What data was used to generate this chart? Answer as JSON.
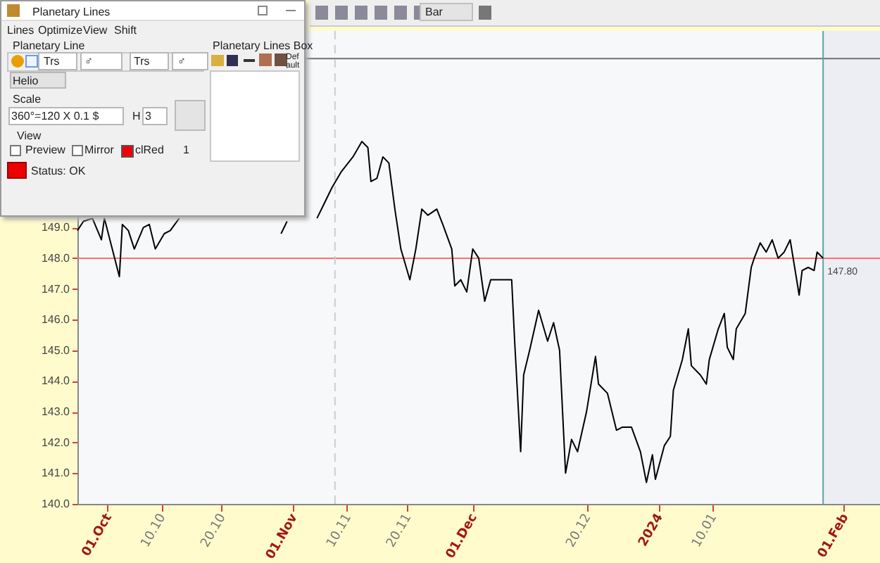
{
  "chart_data": {
    "type": "line",
    "xlim": [
      "2023-09-26",
      "2024-02-07"
    ],
    "ylim": [
      140,
      155.4
    ],
    "xticks": [
      {
        "value": "2023-10-01",
        "label": "01.Oct"
      },
      {
        "value": "2023-10-10",
        "label": "10.10"
      },
      {
        "value": "2023-10-20",
        "label": "20.10"
      },
      {
        "value": "2023-11-01",
        "label": "01.Nov"
      },
      {
        "value": "2023-11-10",
        "label": "10.11"
      },
      {
        "value": "2023-11-20",
        "label": "20.11"
      },
      {
        "value": "2023-12-01",
        "label": "01.Dec"
      },
      {
        "value": "2023-12-20",
        "label": "20.12"
      },
      {
        "value": "2024-01-01",
        "label": "2024"
      },
      {
        "value": "2024-01-10",
        "label": "10.01"
      },
      {
        "value": "2024-02-01",
        "label": "01.Feb"
      }
    ],
    "yticks": [
      {
        "value": 140,
        "label": "140.0"
      },
      {
        "value": 141,
        "label": "141.0"
      },
      {
        "value": 142,
        "label": "142.0"
      },
      {
        "value": 143,
        "label": "143.0"
      },
      {
        "value": 144,
        "label": "144.0"
      },
      {
        "value": 145,
        "label": "145.0"
      },
      {
        "value": 146,
        "label": "146.0"
      },
      {
        "value": 147,
        "label": "147.0"
      },
      {
        "value": 148,
        "label": "148.0"
      },
      {
        "value": 149,
        "label": "149.0"
      }
    ],
    "grid": false,
    "marker": "none",
    "line_style": "solid",
    "x": [
      "2023-09-26",
      "2023-09-27",
      "2023-09-28T12:00",
      "2023-09-30",
      "2023-09-30T12:00",
      "2023-10-03",
      "2023-10-03T12:00",
      "2023-10-04T12:00",
      "2023-10-05T12:00",
      "2023-10-07",
      "2023-10-08",
      "2023-10-09",
      "2023-10-10T12:00",
      "2023-10-11T12:00",
      "2023-10-13",
      "2023-10-14",
      "2023-10-30",
      "2023-10-31",
      "2023-11-03T12:00",
      "2023-11-05",
      "2023-11-06",
      "2023-11-07T12:00",
      "2023-11-09",
      "2023-11-11",
      "2023-11-12T12:00",
      "2023-11-13T12:00",
      "2023-11-14",
      "2023-11-15",
      "2023-11-16",
      "2023-11-17",
      "2023-11-18",
      "2023-11-19",
      "2023-11-20T12:00",
      "2023-11-21T12:00",
      "2023-11-22T12:00",
      "2023-11-23T12:00",
      "2023-11-25",
      "2023-11-26",
      "2023-11-27T12:00",
      "2023-11-28",
      "2023-11-29",
      "2023-11-30",
      "2023-12-01",
      "2023-12-02",
      "2023-12-03",
      "2023-12-04",
      "2023-12-06",
      "2023-12-07T12:00",
      "2023-12-08",
      "2023-12-09",
      "2023-12-09T12:00",
      "2023-12-10T12:00",
      "2023-12-12",
      "2023-12-13T12:00",
      "2023-12-14T12:00",
      "2023-12-15T12:00",
      "2023-12-16",
      "2023-12-16T12:00",
      "2023-12-17T12:00",
      "2023-12-18T12:00",
      "2023-12-20",
      "2023-12-21T12:00",
      "2023-12-22",
      "2023-12-23T12:00",
      "2023-12-25",
      "2023-12-26",
      "2023-12-27T12:00",
      "2023-12-29",
      "2023-12-30",
      "2023-12-31",
      "2023-12-31T12:00",
      "2024-01-02",
      "2024-01-03",
      "2024-01-03T12:00",
      "2024-01-05",
      "2024-01-06",
      "2024-01-06T12:00",
      "2024-01-08",
      "2024-01-09",
      "2024-01-09T12:00",
      "2024-01-11",
      "2024-01-12",
      "2024-01-12T12:00",
      "2024-01-13T12:00",
      "2024-01-14",
      "2024-01-15T12:00",
      "2024-01-16T12:00",
      "2024-01-17",
      "2024-01-18",
      "2024-01-19",
      "2024-01-20",
      "2024-01-21",
      "2024-01-22",
      "2024-01-23",
      "2024-01-23T12:00",
      "2024-01-24T12:00",
      "2024-01-25",
      "2024-01-26",
      "2024-01-27",
      "2024-01-27T12:00",
      "2024-01-28T12:00"
    ],
    "series": [
      {
        "color": "#000000",
        "values": [
          148.9,
          149.2,
          149.3,
          148.6,
          149.3,
          147.4,
          149.1,
          148.9,
          148.3,
          149.0,
          149.1,
          148.3,
          148.8,
          148.9,
          149.3,
          null,
          148.8,
          149.2,
          null,
          149.3,
          149.7,
          150.3,
          150.8,
          151.3,
          151.8,
          151.6,
          150.5,
          150.6,
          151.3,
          151.1,
          149.6,
          148.3,
          147.3,
          148.3,
          149.6,
          149.4,
          149.6,
          149.1,
          148.3,
          147.1,
          147.3,
          146.9,
          148.3,
          148.0,
          146.6,
          147.3,
          147.3,
          147.3,
          145.3,
          141.7,
          144.2,
          145.0,
          146.3,
          145.3,
          145.9,
          145.0,
          143.0,
          141.0,
          142.1,
          141.7,
          143.0,
          144.8,
          143.9,
          143.6,
          142.4,
          142.5,
          142.5,
          141.7,
          140.7,
          141.6,
          140.8,
          141.9,
          142.2,
          143.7,
          144.7,
          145.7,
          144.5,
          144.2,
          143.9,
          144.7,
          145.7,
          146.2,
          145.1,
          144.7,
          145.7,
          146.2,
          147.7,
          148.0,
          148.5,
          148.2,
          148.6,
          148.0,
          148.2,
          148.6,
          148.0,
          146.8,
          147.6,
          147.7,
          147.6,
          148.2,
          148.0
        ]
      }
    ],
    "ref_lines": [
      {
        "axis": "y",
        "value": 148,
        "color": "#ff7070",
        "line_style": "solid"
      },
      {
        "axis": "y",
        "value": 154.5,
        "color": "#707070",
        "line_style": "solid"
      },
      {
        "axis": "x",
        "value": "2023-11-08",
        "color": "#c9ced6",
        "line_style": "dashed"
      },
      {
        "axis": "x",
        "value": "2024-01-28T12:00",
        "color": "#5aa6a6",
        "line_style": "solid"
      }
    ],
    "bands": [
      {
        "axis": "x",
        "from": "2024-01-28T12:00",
        "to": "2024-02-07",
        "color": "#eceef4"
      }
    ],
    "annotations": [
      {
        "text": "147.80",
        "x": "2024-01-28T12:00",
        "y": 147.8
      },
      "Planetary Lines",
      "Lines",
      "Optimize",
      "View",
      "Shift",
      "Planetary Line",
      "Trs",
      "♂",
      "Trs",
      "♂",
      "Helio",
      "Scale",
      "360°=120 X 0.1 $",
      "H",
      "3",
      "View",
      "Preview",
      "Mirror",
      "clRed",
      "1",
      "Status: OK",
      "Planetary Lines Box",
      "Default",
      "Bar"
    ]
  }
}
